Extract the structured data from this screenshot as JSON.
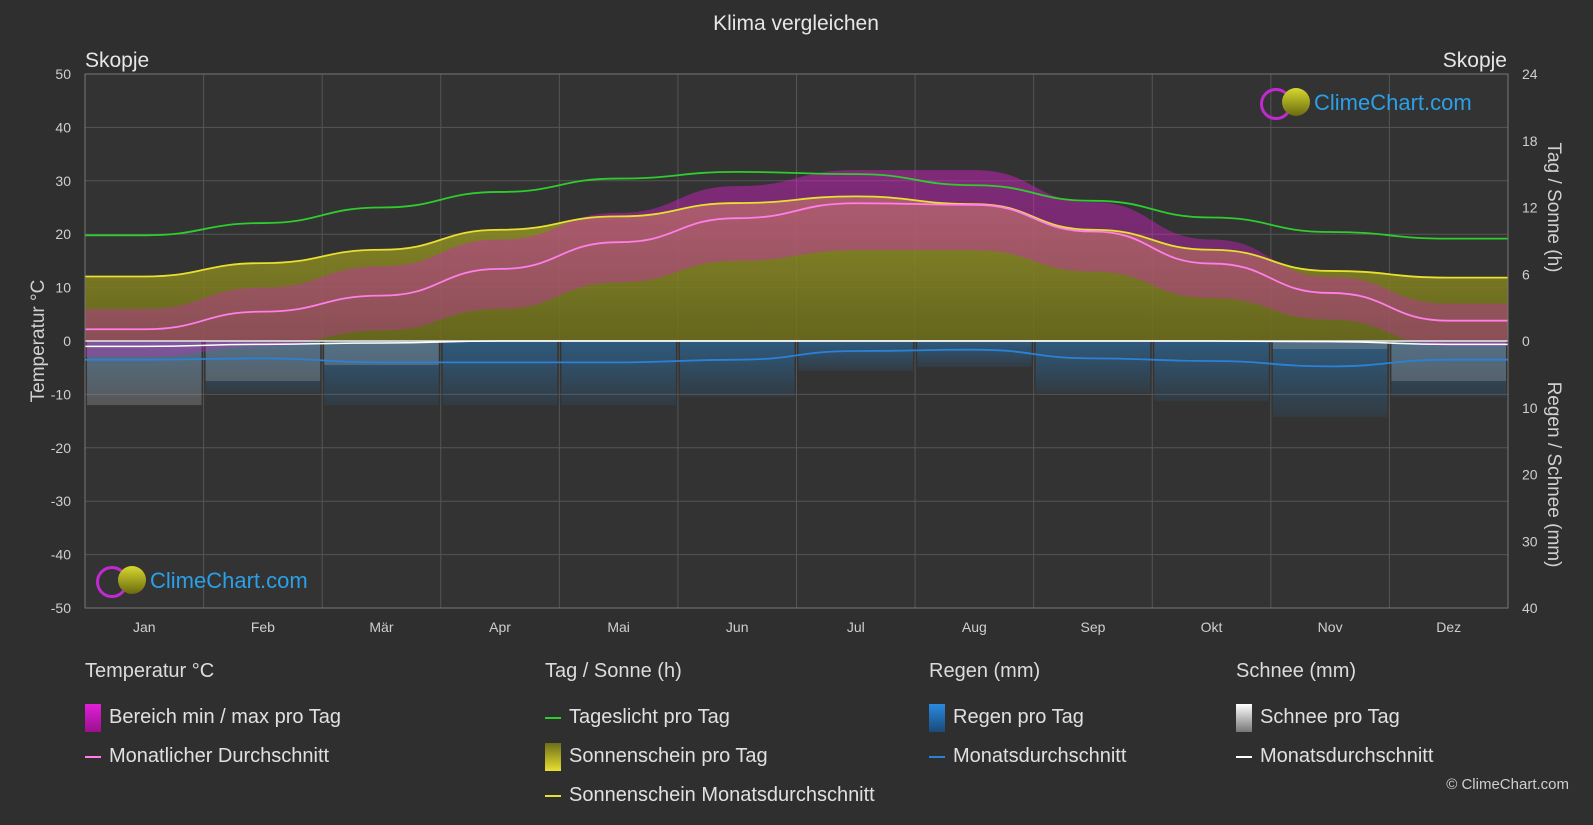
{
  "title": "Klima vergleichen",
  "location_left": "Skopje",
  "location_right": "Skopje",
  "copyright": "© ClimeChart.com",
  "logo_text": "ClimeChart.com",
  "colors": {
    "background": "#2f2f2f",
    "grid": "#555555",
    "temp_range": "#d81ec8",
    "temp_avg": "#ff7ee8",
    "daylight": "#2ecc2e",
    "sunshine_fill": "#8a8a1e",
    "sunshine_avg": "#e8e030",
    "rain": "#2a82c8",
    "rain_avg": "#2a82d8",
    "snow": "#9a9a9a",
    "snow_avg": "#ffffff",
    "logo": "#2aa0e8"
  },
  "chart_data": {
    "type": "line",
    "x_categories": [
      "Jan",
      "Feb",
      "Mär",
      "Apr",
      "Mai",
      "Jun",
      "Jul",
      "Aug",
      "Sep",
      "Okt",
      "Nov",
      "Dez"
    ],
    "y_left": {
      "label": "Temperatur °C",
      "ticks": [
        50,
        40,
        30,
        20,
        10,
        0,
        -10,
        -20,
        -30,
        -40,
        -50
      ],
      "range": [
        -50,
        50
      ]
    },
    "y_right_top": {
      "label": "Tag / Sonne (h)",
      "ticks": [
        24,
        18,
        12,
        6,
        0
      ],
      "range": [
        0,
        24
      ]
    },
    "y_right_bottom": {
      "label": "Regen / Schnee (mm)",
      "ticks": [
        0,
        10,
        20,
        30,
        40
      ],
      "range": [
        0,
        40
      ]
    },
    "series": {
      "temp_avg": [
        2.2,
        5.5,
        8.5,
        13.5,
        18.5,
        23.0,
        25.8,
        25.5,
        20.5,
        14.5,
        9.0,
        3.8
      ],
      "temp_max": [
        6,
        10,
        14,
        19,
        24,
        29,
        32,
        32,
        26,
        19,
        12,
        7
      ],
      "temp_min": [
        -3,
        -1,
        2,
        6,
        11,
        15,
        17,
        17,
        13,
        8,
        4,
        -1
      ],
      "daylight_h": [
        9.5,
        10.6,
        12.0,
        13.4,
        14.6,
        15.2,
        15.0,
        14.0,
        12.6,
        11.1,
        9.8,
        9.2
      ],
      "sunshine_h": [
        5.8,
        7.0,
        8.2,
        10.0,
        11.2,
        12.4,
        13.0,
        12.3,
        10.0,
        8.2,
        6.3,
        5.7
      ],
      "rain_mm": [
        2.8,
        2.6,
        3.2,
        3.2,
        3.2,
        2.8,
        1.5,
        1.3,
        2.6,
        3.0,
        3.8,
        2.8
      ],
      "snow_mm": [
        0.8,
        0.5,
        0.3,
        0.0,
        0.0,
        0.0,
        0.0,
        0.0,
        0.0,
        0.0,
        0.1,
        0.5
      ]
    }
  },
  "legend": {
    "temp": {
      "header": "Temperatur °C",
      "range": "Bereich min / max pro Tag",
      "avg": "Monatlicher Durchschnitt"
    },
    "sun": {
      "header": "Tag / Sonne (h)",
      "daylight": "Tageslicht pro Tag",
      "sunshine": "Sonnenschein pro Tag",
      "sunshine_avg": "Sonnenschein Monatsdurchschnitt"
    },
    "rain": {
      "header": "Regen (mm)",
      "day": "Regen pro Tag",
      "avg": "Monatsdurchschnitt"
    },
    "snow": {
      "header": "Schnee (mm)",
      "day": "Schnee pro Tag",
      "avg": "Monatsdurchschnitt"
    }
  }
}
